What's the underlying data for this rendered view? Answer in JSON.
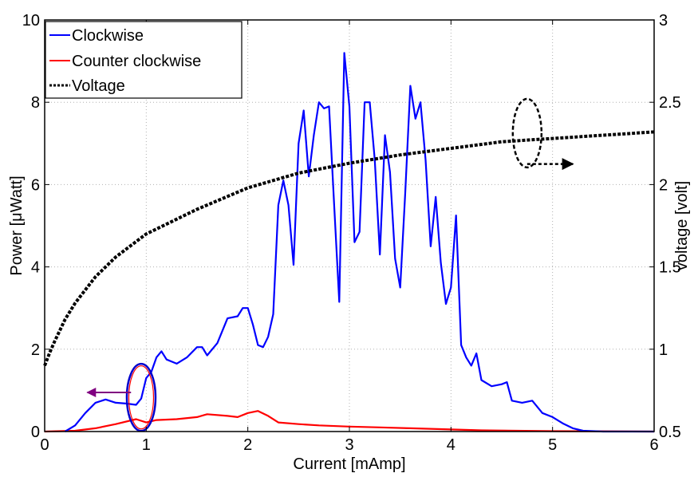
{
  "chart_data": {
    "type": "line",
    "title": "",
    "xlabel": "Current [mAmp]",
    "ylabel": "Power [μWatt]",
    "y2label": "voltage [volt]",
    "xlim": [
      0,
      6
    ],
    "ylim": [
      0,
      10
    ],
    "y2lim": [
      0.5,
      3
    ],
    "xticks": [
      "0",
      "1",
      "2",
      "3",
      "4",
      "5",
      "6"
    ],
    "yticks": [
      "0",
      "2",
      "4",
      "6",
      "8",
      "10"
    ],
    "y2ticks": [
      "0.5",
      "1",
      "1.5",
      "2",
      "2.5",
      "3"
    ],
    "grid": true,
    "legend_position": "top-left",
    "series": [
      {
        "name": "Clockwise",
        "axis": "left",
        "color": "#0000ff",
        "style": "solid",
        "x": [
          0.2,
          0.3,
          0.4,
          0.5,
          0.6,
          0.7,
          0.8,
          0.9,
          0.95,
          1.0,
          1.05,
          1.1,
          1.15,
          1.2,
          1.3,
          1.4,
          1.5,
          1.55,
          1.6,
          1.7,
          1.8,
          1.9,
          1.95,
          2.0,
          2.05,
          2.1,
          2.15,
          2.2,
          2.25,
          2.3,
          2.35,
          2.4,
          2.45,
          2.5,
          2.55,
          2.6,
          2.65,
          2.7,
          2.75,
          2.8,
          2.85,
          2.9,
          2.95,
          3.0,
          3.05,
          3.1,
          3.15,
          3.2,
          3.25,
          3.3,
          3.35,
          3.4,
          3.45,
          3.5,
          3.55,
          3.6,
          3.65,
          3.7,
          3.75,
          3.8,
          3.85,
          3.9,
          3.95,
          4.0,
          4.05,
          4.1,
          4.15,
          4.2,
          4.25,
          4.3,
          4.4,
          4.5,
          4.55,
          4.6,
          4.7,
          4.8,
          4.9,
          5.0,
          5.1,
          5.2,
          5.3,
          5.5,
          6.0
        ],
        "y": [
          0.0,
          0.15,
          0.45,
          0.7,
          0.78,
          0.7,
          0.68,
          0.65,
          0.8,
          1.3,
          1.45,
          1.8,
          1.95,
          1.75,
          1.65,
          1.8,
          2.05,
          2.05,
          1.85,
          2.15,
          2.75,
          2.8,
          3.0,
          3.0,
          2.6,
          2.1,
          2.05,
          2.3,
          2.85,
          5.5,
          6.1,
          5.5,
          4.05,
          7.0,
          7.8,
          6.2,
          7.2,
          8.0,
          7.85,
          7.9,
          5.5,
          3.15,
          9.2,
          7.9,
          4.6,
          4.85,
          8.0,
          8.0,
          6.6,
          4.3,
          7.2,
          6.3,
          4.2,
          3.5,
          5.8,
          8.4,
          7.6,
          8.0,
          6.6,
          4.5,
          5.7,
          4.1,
          3.1,
          3.5,
          5.25,
          2.1,
          1.8,
          1.6,
          1.9,
          1.25,
          1.1,
          1.15,
          1.2,
          0.75,
          0.7,
          0.75,
          0.45,
          0.35,
          0.2,
          0.08,
          0.02,
          0.0,
          0.0
        ]
      },
      {
        "name": "Counter clockwise",
        "axis": "left",
        "color": "#ff0000",
        "style": "solid",
        "x": [
          0.0,
          0.3,
          0.5,
          0.7,
          0.9,
          1.0,
          1.1,
          1.3,
          1.5,
          1.6,
          1.8,
          1.9,
          2.0,
          2.1,
          2.2,
          2.3,
          2.5,
          2.7,
          3.0,
          3.3,
          3.6,
          4.0,
          4.3,
          5.0,
          6.0
        ],
        "y": [
          0.0,
          0.02,
          0.08,
          0.18,
          0.3,
          0.22,
          0.28,
          0.3,
          0.35,
          0.42,
          0.38,
          0.35,
          0.45,
          0.5,
          0.38,
          0.22,
          0.18,
          0.15,
          0.12,
          0.1,
          0.08,
          0.05,
          0.03,
          0.01,
          0.0
        ]
      },
      {
        "name": "Voltage",
        "axis": "right",
        "color": "#000000",
        "style": "dotted",
        "x": [
          0.0,
          0.05,
          0.1,
          0.2,
          0.3,
          0.4,
          0.5,
          0.7,
          1.0,
          1.5,
          2.0,
          2.5,
          3.0,
          3.5,
          4.0,
          4.5,
          5.0,
          5.5,
          6.0
        ],
        "y": [
          0.9,
          0.98,
          1.05,
          1.18,
          1.28,
          1.36,
          1.44,
          1.56,
          1.7,
          1.85,
          1.98,
          2.07,
          2.13,
          2.18,
          2.22,
          2.26,
          2.28,
          2.3,
          2.32
        ]
      }
    ]
  }
}
